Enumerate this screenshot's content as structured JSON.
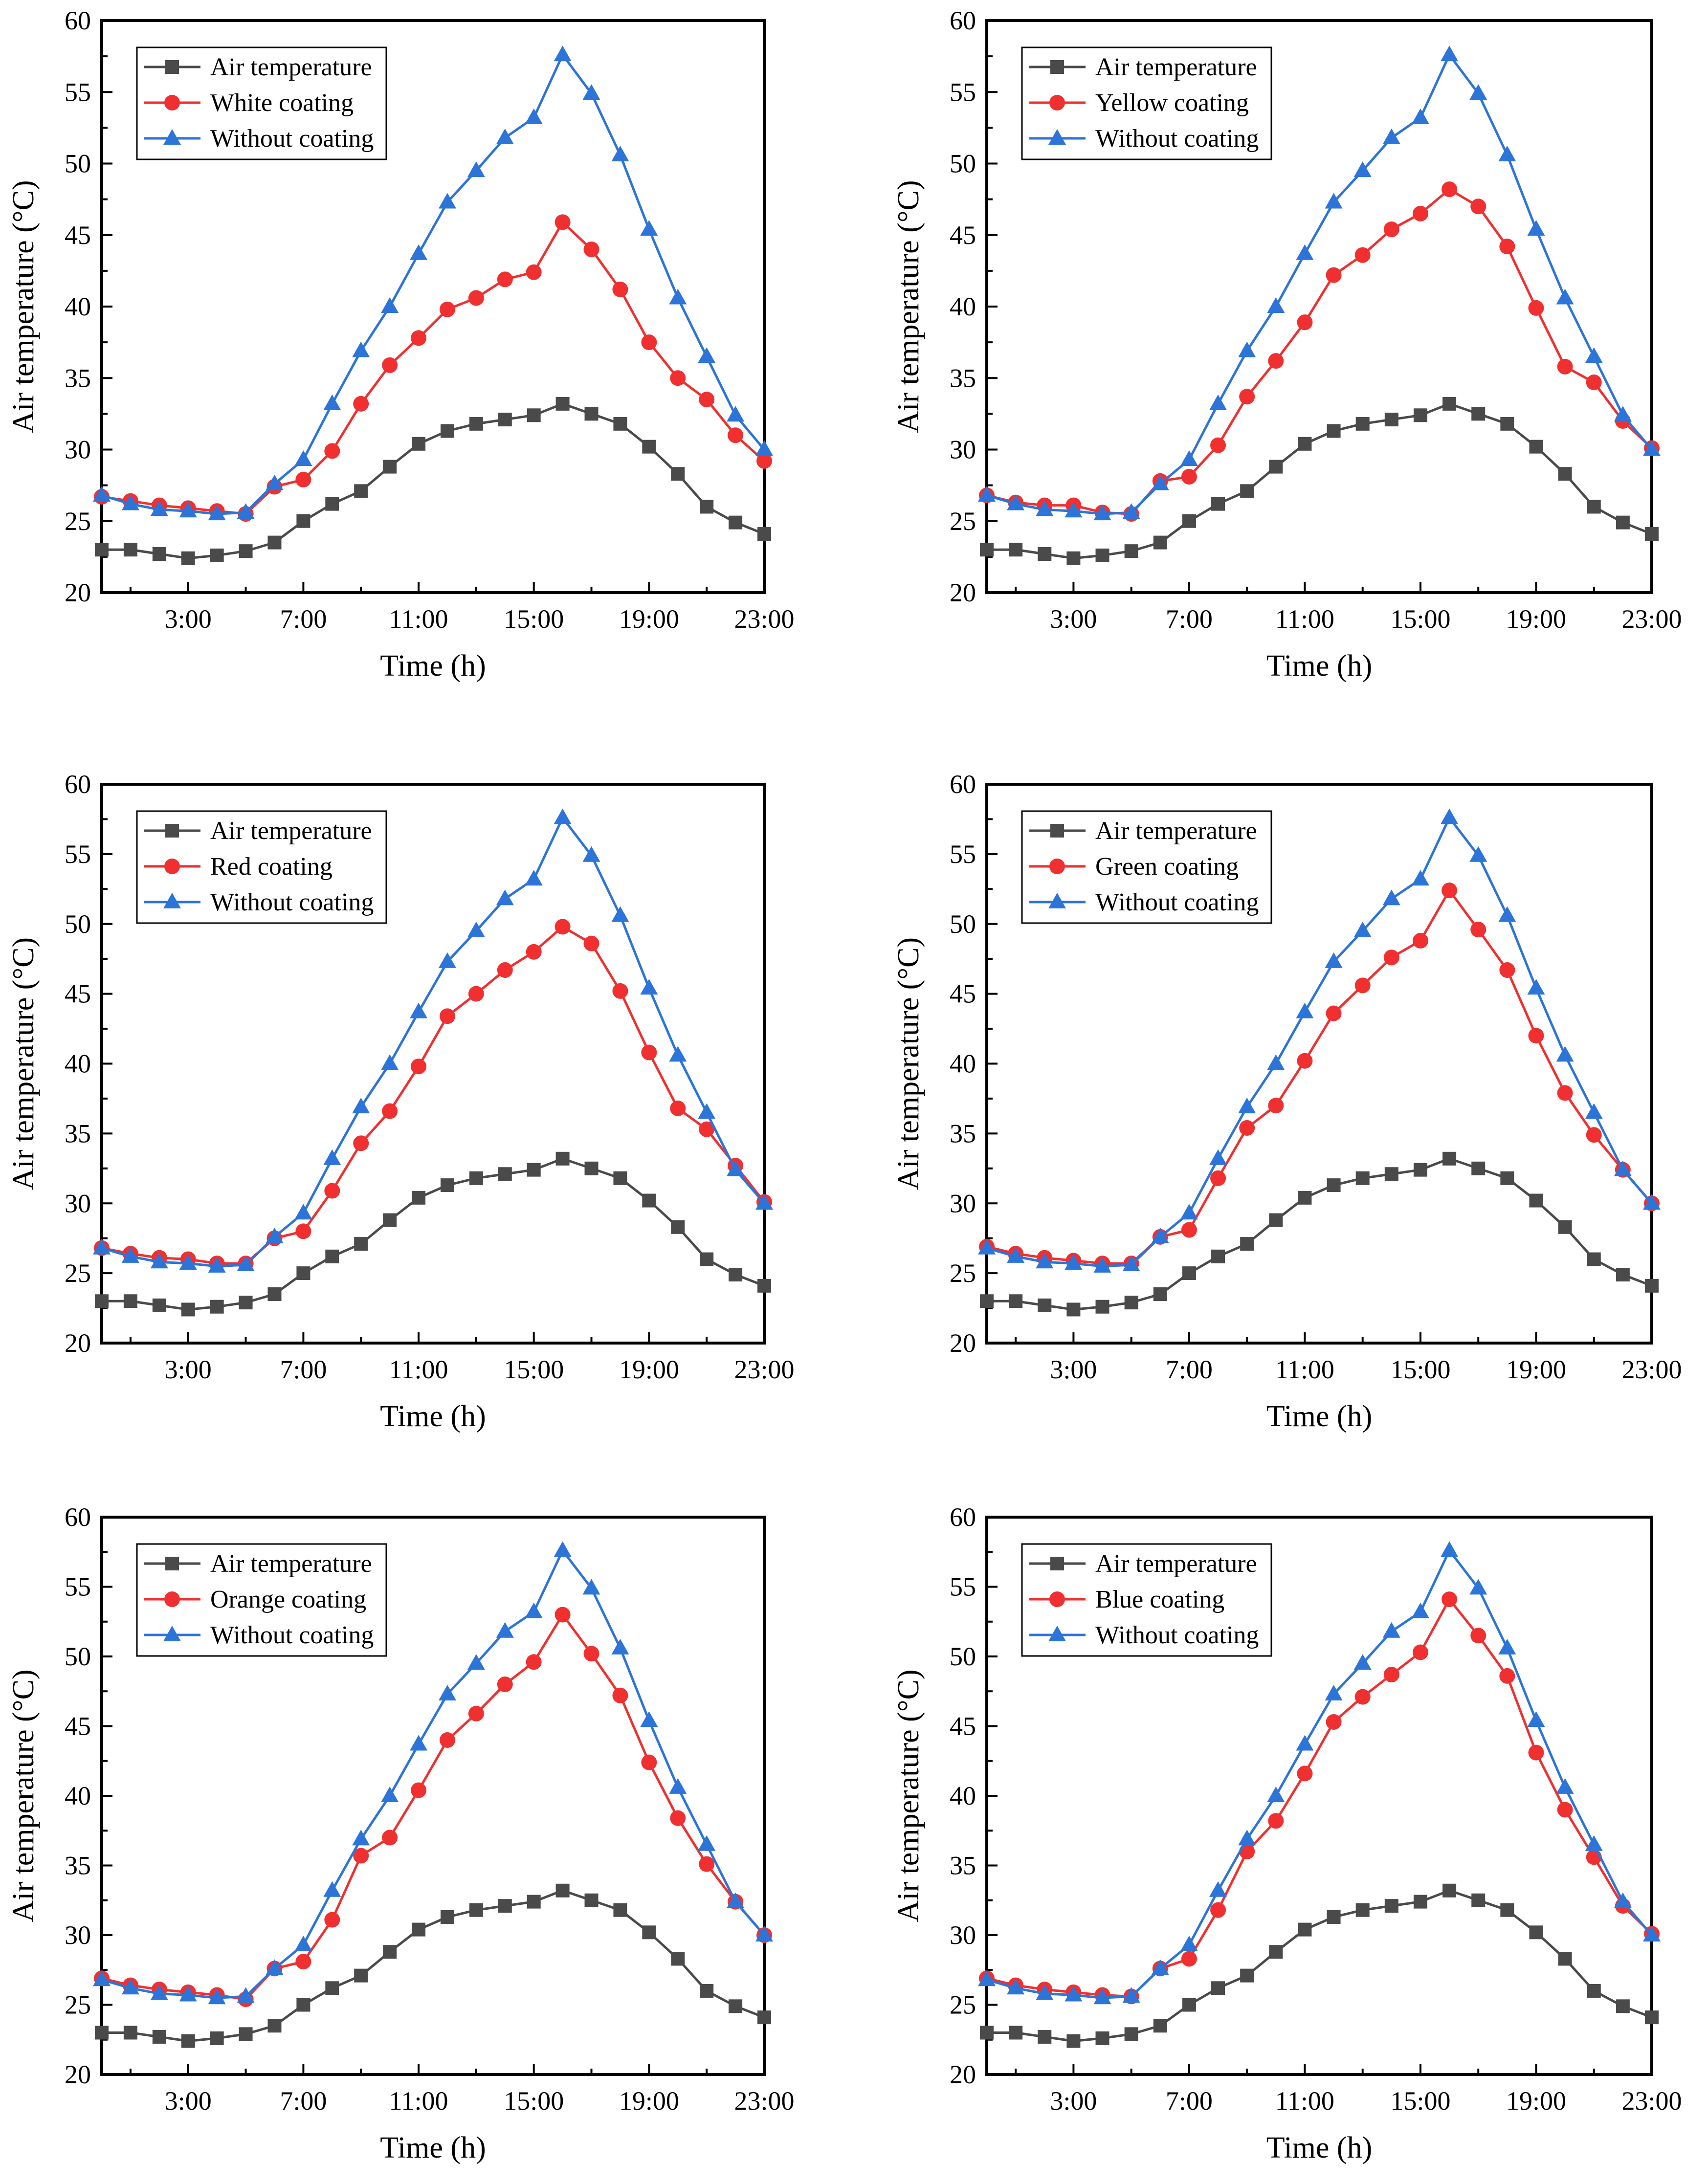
{
  "colors": {
    "air": "#4a4a4a",
    "coating": "#f03030",
    "without": "#2d74d9"
  },
  "chart_data": [
    {
      "type": "line",
      "panel": "top-left",
      "xlabel": "Time (h)",
      "ylabel": "Air temperature (°C)",
      "ylim": [
        20,
        60
      ],
      "yticks": [
        20,
        25,
        30,
        35,
        40,
        45,
        50,
        55,
        60
      ],
      "xlim": [
        0,
        23
      ],
      "xticks": [
        3,
        7,
        11,
        15,
        19,
        23
      ],
      "xtick_labels": [
        "3:00",
        "7:00",
        "11:00",
        "15:00",
        "19:00",
        "23:00"
      ],
      "x": [
        0,
        1,
        2,
        3,
        4,
        5,
        6,
        7,
        8,
        9,
        10,
        11,
        12,
        13,
        14,
        15,
        16,
        17,
        18,
        19,
        20,
        21,
        22,
        23
      ],
      "legend_position": "top-left",
      "series": [
        {
          "name": "Air temperature",
          "marker": "square",
          "color_key": "air",
          "values": [
            23.0,
            23.0,
            22.7,
            22.4,
            22.6,
            22.9,
            23.5,
            25.0,
            26.2,
            27.1,
            28.8,
            30.4,
            31.3,
            31.8,
            32.1,
            32.4,
            33.2,
            32.5,
            31.8,
            30.2,
            28.3,
            26.0,
            24.9,
            24.1
          ]
        },
        {
          "name": "White coating",
          "marker": "circle",
          "color_key": "coating",
          "values": [
            26.7,
            26.4,
            26.1,
            25.9,
            25.7,
            25.5,
            27.4,
            27.9,
            29.9,
            33.2,
            35.9,
            37.8,
            39.8,
            40.6,
            41.9,
            42.4,
            45.9,
            44.0,
            41.2,
            37.5,
            35.0,
            33.5,
            31.0,
            29.2
          ]
        },
        {
          "name": "Without coating",
          "marker": "triangle",
          "color_key": "without",
          "values": [
            26.8,
            26.2,
            25.8,
            25.7,
            25.5,
            25.6,
            27.6,
            29.3,
            33.2,
            36.9,
            40.0,
            43.7,
            47.3,
            49.5,
            51.8,
            53.2,
            57.6,
            54.9,
            50.6,
            45.4,
            40.6,
            36.5,
            32.4,
            30.0
          ]
        }
      ]
    },
    {
      "type": "line",
      "panel": "top-right",
      "xlabel": "Time (h)",
      "ylabel": "Air temperature (°C)",
      "ylim": [
        20,
        60
      ],
      "yticks": [
        20,
        25,
        30,
        35,
        40,
        45,
        50,
        55,
        60
      ],
      "xlim": [
        0,
        23
      ],
      "xticks": [
        3,
        7,
        11,
        15,
        19,
        23
      ],
      "xtick_labels": [
        "3:00",
        "7:00",
        "11:00",
        "15:00",
        "19:00",
        "23:00"
      ],
      "x": [
        0,
        1,
        2,
        3,
        4,
        5,
        6,
        7,
        8,
        9,
        10,
        11,
        12,
        13,
        14,
        15,
        16,
        17,
        18,
        19,
        20,
        21,
        22,
        23
      ],
      "legend_position": "top-left",
      "series": [
        {
          "name": "Air temperature",
          "marker": "square",
          "color_key": "air",
          "values": [
            23.0,
            23.0,
            22.7,
            22.4,
            22.6,
            22.9,
            23.5,
            25.0,
            26.2,
            27.1,
            28.8,
            30.4,
            31.3,
            31.8,
            32.1,
            32.4,
            33.2,
            32.5,
            31.8,
            30.2,
            28.3,
            26.0,
            24.9,
            24.1
          ]
        },
        {
          "name": "Yellow coating",
          "marker": "circle",
          "color_key": "coating",
          "values": [
            26.8,
            26.3,
            26.1,
            26.1,
            25.6,
            25.5,
            27.8,
            28.1,
            30.3,
            33.7,
            36.2,
            38.9,
            42.2,
            43.6,
            45.4,
            46.5,
            48.2,
            47.0,
            44.2,
            39.9,
            35.8,
            34.7,
            32.0,
            30.1
          ]
        },
        {
          "name": "Without coating",
          "marker": "triangle",
          "color_key": "without",
          "values": [
            26.8,
            26.2,
            25.8,
            25.7,
            25.5,
            25.6,
            27.6,
            29.3,
            33.2,
            36.9,
            40.0,
            43.7,
            47.3,
            49.5,
            51.8,
            53.2,
            57.6,
            54.9,
            50.6,
            45.4,
            40.6,
            36.5,
            32.4,
            30.0
          ]
        }
      ]
    },
    {
      "type": "line",
      "panel": "middle-left",
      "xlabel": "Time (h)",
      "ylabel": "Air temperature (°C)",
      "ylim": [
        20,
        60
      ],
      "yticks": [
        20,
        25,
        30,
        35,
        40,
        45,
        50,
        55,
        60
      ],
      "xlim": [
        0,
        23
      ],
      "xticks": [
        3,
        7,
        11,
        15,
        19,
        23
      ],
      "xtick_labels": [
        "3:00",
        "7:00",
        "11:00",
        "15:00",
        "19:00",
        "23:00"
      ],
      "x": [
        0,
        1,
        2,
        3,
        4,
        5,
        6,
        7,
        8,
        9,
        10,
        11,
        12,
        13,
        14,
        15,
        16,
        17,
        18,
        19,
        20,
        21,
        22,
        23
      ],
      "legend_position": "top-left",
      "series": [
        {
          "name": "Air temperature",
          "marker": "square",
          "color_key": "air",
          "values": [
            23.0,
            23.0,
            22.7,
            22.4,
            22.6,
            22.9,
            23.5,
            25.0,
            26.2,
            27.1,
            28.8,
            30.4,
            31.3,
            31.8,
            32.1,
            32.4,
            33.2,
            32.5,
            31.8,
            30.2,
            28.3,
            26.0,
            24.9,
            24.1
          ]
        },
        {
          "name": "Red coating",
          "marker": "circle",
          "color_key": "coating",
          "values": [
            26.8,
            26.4,
            26.1,
            26.0,
            25.7,
            25.7,
            27.5,
            28.0,
            30.9,
            34.3,
            36.6,
            39.8,
            43.4,
            45.0,
            46.7,
            48.0,
            49.8,
            48.6,
            45.2,
            40.8,
            36.8,
            35.3,
            32.7,
            30.1
          ]
        },
        {
          "name": "Without coating",
          "marker": "triangle",
          "color_key": "without",
          "values": [
            26.8,
            26.2,
            25.8,
            25.7,
            25.5,
            25.6,
            27.6,
            29.3,
            33.2,
            36.9,
            40.0,
            43.7,
            47.3,
            49.5,
            51.8,
            53.2,
            57.6,
            54.9,
            50.6,
            45.4,
            40.6,
            36.5,
            32.4,
            30.0
          ]
        }
      ]
    },
    {
      "type": "line",
      "panel": "middle-right",
      "xlabel": "Time (h)",
      "ylabel": "Air temperature (°C)",
      "ylim": [
        20,
        60
      ],
      "yticks": [
        20,
        25,
        30,
        35,
        40,
        45,
        50,
        55,
        60
      ],
      "xlim": [
        0,
        23
      ],
      "xticks": [
        3,
        7,
        11,
        15,
        19,
        23
      ],
      "xtick_labels": [
        "3:00",
        "7:00",
        "11:00",
        "15:00",
        "19:00",
        "23:00"
      ],
      "x": [
        0,
        1,
        2,
        3,
        4,
        5,
        6,
        7,
        8,
        9,
        10,
        11,
        12,
        13,
        14,
        15,
        16,
        17,
        18,
        19,
        20,
        21,
        22,
        23
      ],
      "legend_position": "top-left",
      "series": [
        {
          "name": "Air temperature",
          "marker": "square",
          "color_key": "air",
          "values": [
            23.0,
            23.0,
            22.7,
            22.4,
            22.6,
            22.9,
            23.5,
            25.0,
            26.2,
            27.1,
            28.8,
            30.4,
            31.3,
            31.8,
            32.1,
            32.4,
            33.2,
            32.5,
            31.8,
            30.2,
            28.3,
            26.0,
            24.9,
            24.1
          ]
        },
        {
          "name": "Green coating",
          "marker": "circle",
          "color_key": "coating",
          "values": [
            26.9,
            26.4,
            26.1,
            25.9,
            25.7,
            25.7,
            27.6,
            28.1,
            31.8,
            35.4,
            37.0,
            40.2,
            43.6,
            45.6,
            47.6,
            48.8,
            52.4,
            49.6,
            46.7,
            42.0,
            37.9,
            34.9,
            32.4,
            30.0
          ]
        },
        {
          "name": "Without coating",
          "marker": "triangle",
          "color_key": "without",
          "values": [
            26.8,
            26.2,
            25.8,
            25.7,
            25.5,
            25.6,
            27.6,
            29.3,
            33.2,
            36.9,
            40.0,
            43.7,
            47.3,
            49.5,
            51.8,
            53.2,
            57.6,
            54.9,
            50.6,
            45.4,
            40.6,
            36.5,
            32.4,
            30.0
          ]
        }
      ]
    },
    {
      "type": "line",
      "panel": "bottom-left",
      "xlabel": "Time (h)",
      "ylabel": "Air temperature (°C)",
      "ylim": [
        20,
        60
      ],
      "yticks": [
        20,
        25,
        30,
        35,
        40,
        45,
        50,
        55,
        60
      ],
      "xlim": [
        0,
        23
      ],
      "xticks": [
        3,
        7,
        11,
        15,
        19,
        23
      ],
      "xtick_labels": [
        "3:00",
        "7:00",
        "11:00",
        "15:00",
        "19:00",
        "23:00"
      ],
      "x": [
        0,
        1,
        2,
        3,
        4,
        5,
        6,
        7,
        8,
        9,
        10,
        11,
        12,
        13,
        14,
        15,
        16,
        17,
        18,
        19,
        20,
        21,
        22,
        23
      ],
      "legend_position": "top-left",
      "series": [
        {
          "name": "Air temperature",
          "marker": "square",
          "color_key": "air",
          "values": [
            23.0,
            23.0,
            22.7,
            22.4,
            22.6,
            22.9,
            23.5,
            25.0,
            26.2,
            27.1,
            28.8,
            30.4,
            31.3,
            31.8,
            32.1,
            32.4,
            33.2,
            32.5,
            31.8,
            30.2,
            28.3,
            26.0,
            24.9,
            24.1
          ]
        },
        {
          "name": "Orange coating",
          "marker": "circle",
          "color_key": "coating",
          "values": [
            26.9,
            26.4,
            26.1,
            25.9,
            25.7,
            25.4,
            27.6,
            28.1,
            31.1,
            35.7,
            37.0,
            40.4,
            44.0,
            45.9,
            48.0,
            49.6,
            53.0,
            50.2,
            47.2,
            42.4,
            38.4,
            35.1,
            32.4,
            30.0
          ]
        },
        {
          "name": "Without coating",
          "marker": "triangle",
          "color_key": "without",
          "values": [
            26.8,
            26.2,
            25.8,
            25.7,
            25.5,
            25.6,
            27.6,
            29.3,
            33.2,
            36.9,
            40.0,
            43.7,
            47.3,
            49.5,
            51.8,
            53.2,
            57.6,
            54.9,
            50.6,
            45.4,
            40.6,
            36.5,
            32.4,
            30.0
          ]
        }
      ]
    },
    {
      "type": "line",
      "panel": "bottom-right",
      "xlabel": "Time (h)",
      "ylabel": "Air temperature (°C)",
      "ylim": [
        20,
        60
      ],
      "yticks": [
        20,
        25,
        30,
        35,
        40,
        45,
        50,
        55,
        60
      ],
      "xlim": [
        0,
        23
      ],
      "xticks": [
        3,
        7,
        11,
        15,
        19,
        23
      ],
      "xtick_labels": [
        "3:00",
        "7:00",
        "11:00",
        "15:00",
        "19:00",
        "23:00"
      ],
      "x": [
        0,
        1,
        2,
        3,
        4,
        5,
        6,
        7,
        8,
        9,
        10,
        11,
        12,
        13,
        14,
        15,
        16,
        17,
        18,
        19,
        20,
        21,
        22,
        23
      ],
      "legend_position": "top-left",
      "series": [
        {
          "name": "Air temperature",
          "marker": "square",
          "color_key": "air",
          "values": [
            23.0,
            23.0,
            22.7,
            22.4,
            22.6,
            22.9,
            23.5,
            25.0,
            26.2,
            27.1,
            28.8,
            30.4,
            31.3,
            31.8,
            32.1,
            32.4,
            33.2,
            32.5,
            31.8,
            30.2,
            28.3,
            26.0,
            24.9,
            24.1
          ]
        },
        {
          "name": "Blue coating",
          "marker": "circle",
          "color_key": "coating",
          "values": [
            26.9,
            26.4,
            26.1,
            25.9,
            25.7,
            25.6,
            27.6,
            28.3,
            31.8,
            36.0,
            38.2,
            41.6,
            45.3,
            47.1,
            48.7,
            50.3,
            54.1,
            51.5,
            48.6,
            43.1,
            39.0,
            35.6,
            32.1,
            30.1
          ]
        },
        {
          "name": "Without coating",
          "marker": "triangle",
          "color_key": "without",
          "values": [
            26.8,
            26.2,
            25.8,
            25.7,
            25.5,
            25.6,
            27.6,
            29.3,
            33.2,
            36.9,
            40.0,
            43.7,
            47.3,
            49.5,
            51.8,
            53.2,
            57.6,
            54.9,
            50.6,
            45.4,
            40.6,
            36.5,
            32.4,
            30.0
          ]
        }
      ]
    }
  ]
}
